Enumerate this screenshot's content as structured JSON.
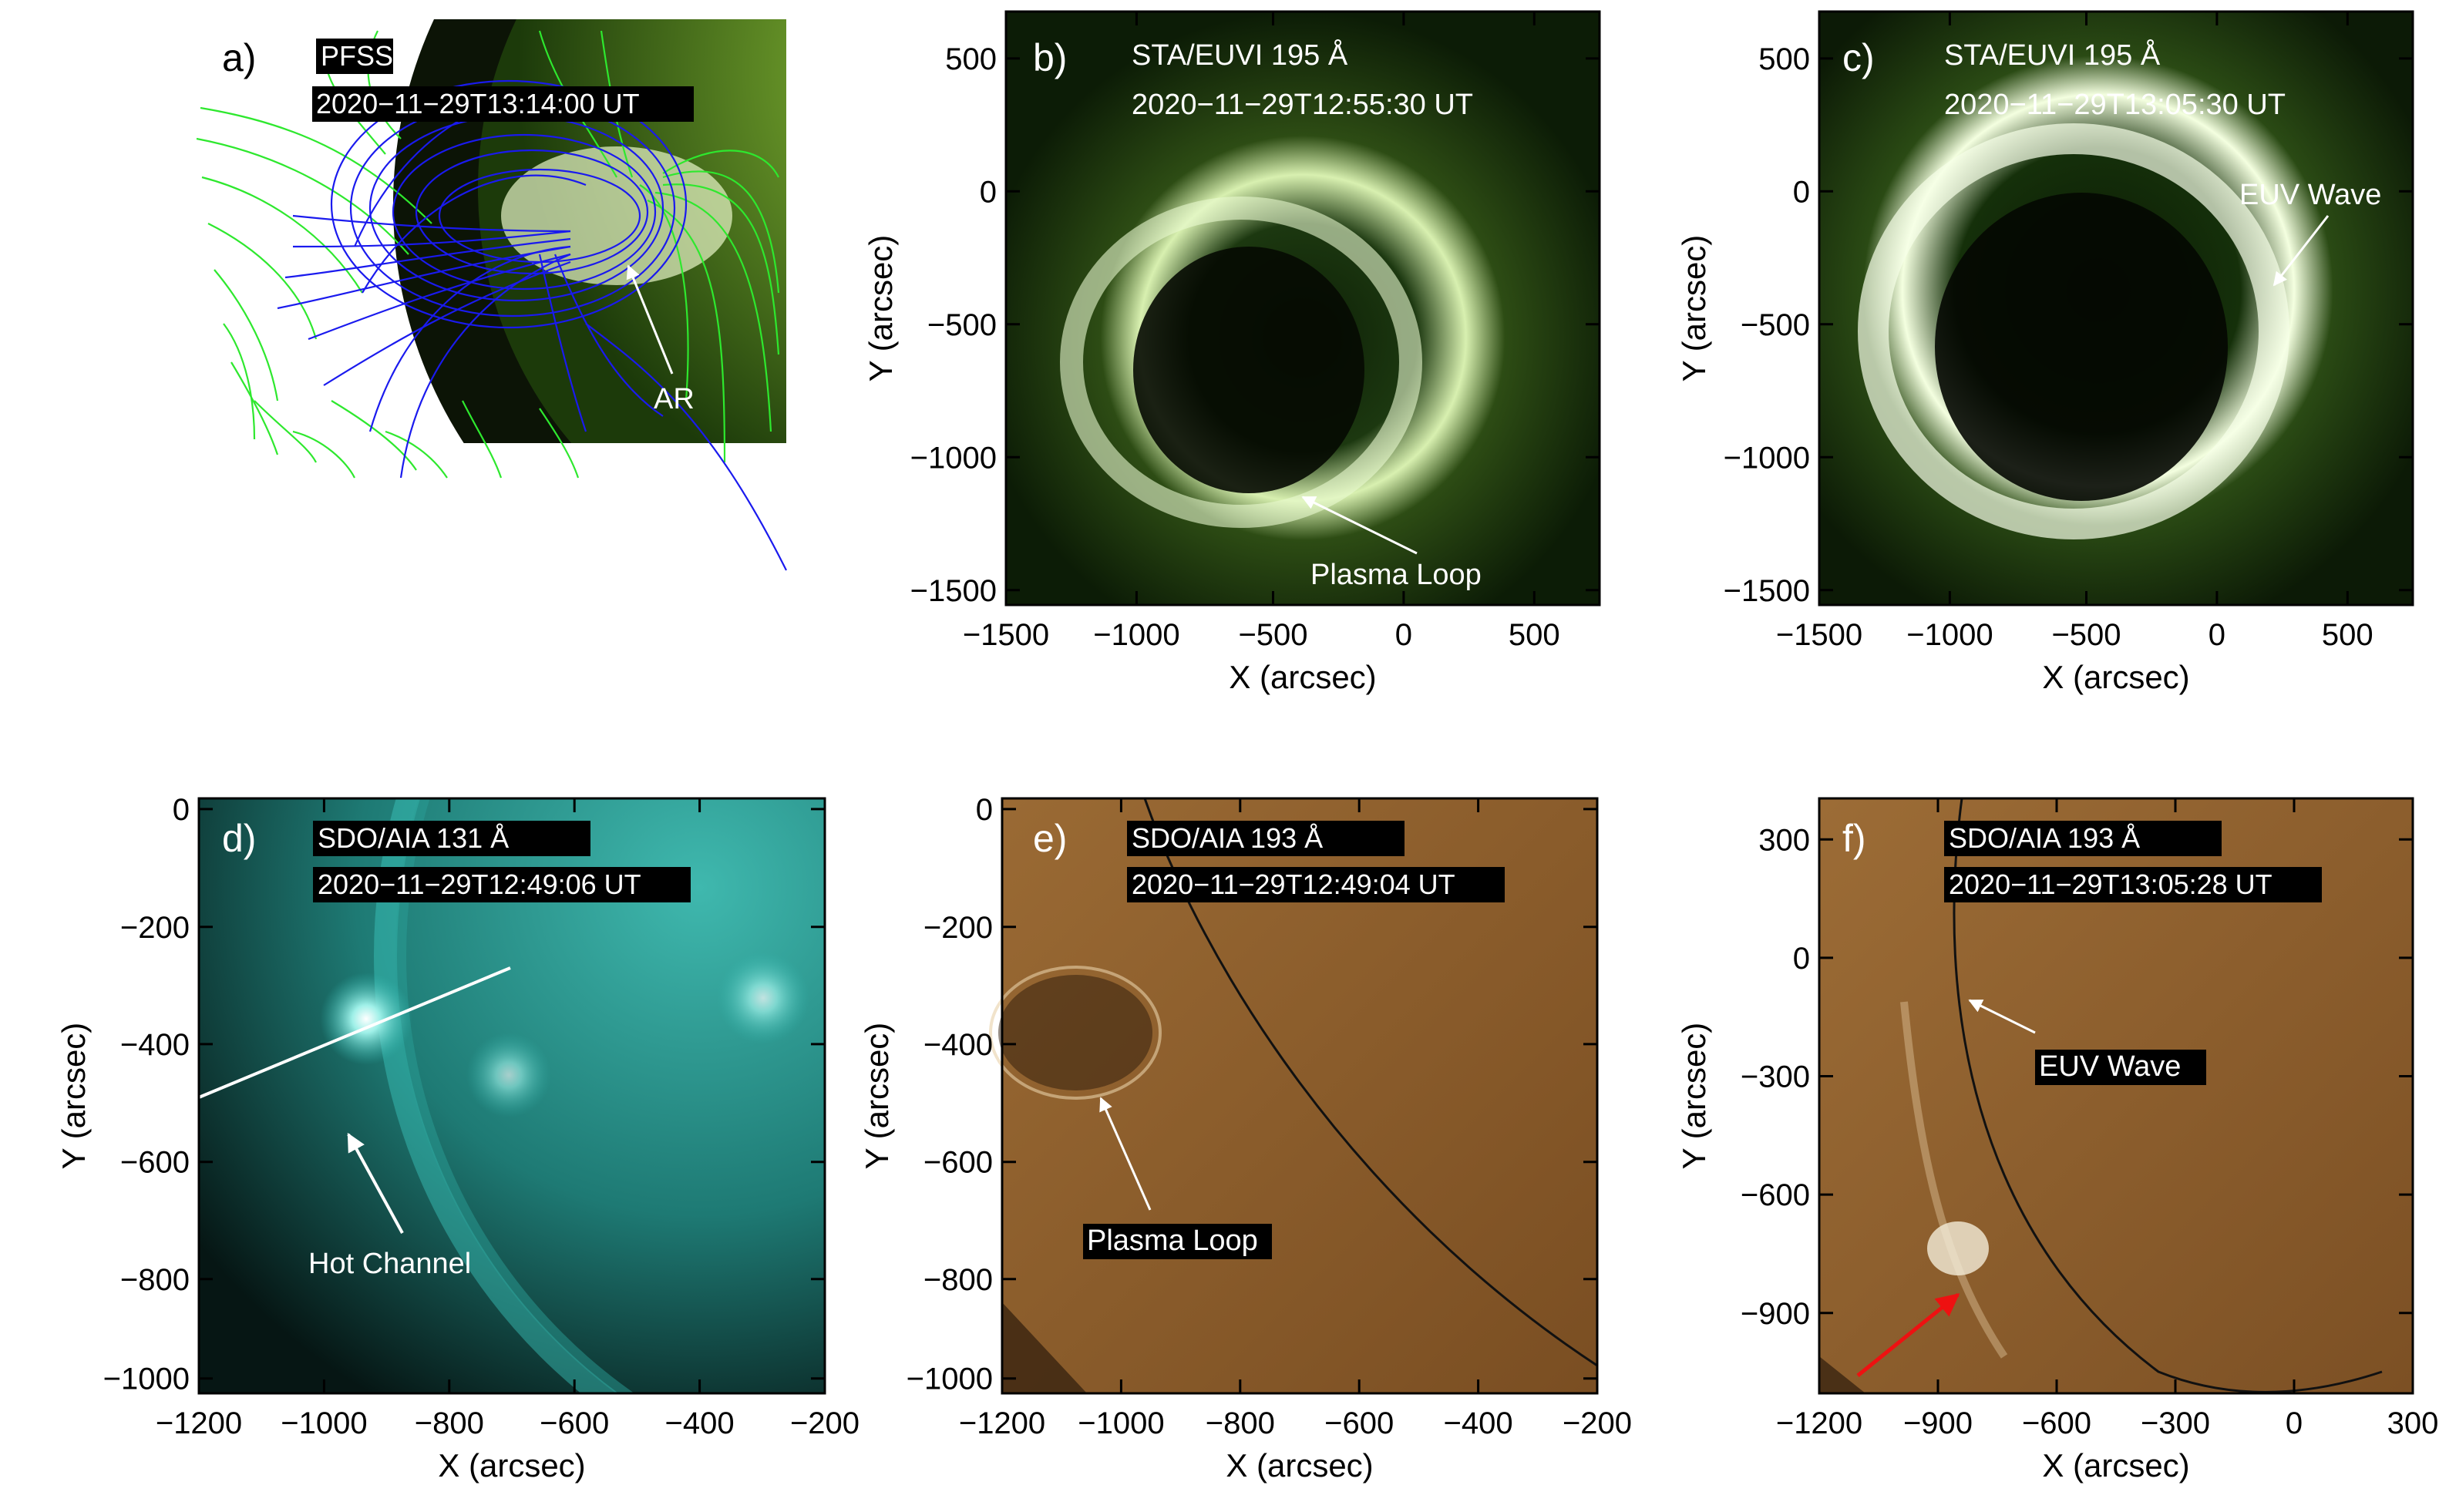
{
  "panels": {
    "a": {
      "letter": "a)",
      "tag1": "PFSS",
      "tag2": "2020−11−29T13:14:00 UT",
      "annotation": "AR"
    },
    "b": {
      "letter": "b)",
      "tag1": "STA/EUVI 195 Å",
      "tag2": "2020−11−29T12:55:30 UT",
      "annotation": "Plasma Loop",
      "xlabel": "X (arcsec)",
      "ylabel": "Y (arcsec)",
      "xticks": [
        "−1500",
        "−1000",
        "−500",
        "0",
        "500"
      ],
      "yticks": [
        "500",
        "0",
        "−500",
        "−1000",
        "−1500"
      ]
    },
    "c": {
      "letter": "c)",
      "tag1": "STA/EUVI 195 Å",
      "tag2": "2020−11−29T13:05:30 UT",
      "annotation": "EUV Wave",
      "xlabel": "X (arcsec)",
      "ylabel": "Y (arcsec)",
      "xticks": [
        "−1500",
        "−1000",
        "−500",
        "0",
        "500"
      ],
      "yticks": [
        "500",
        "0",
        "−500",
        "−1000",
        "−1500"
      ]
    },
    "d": {
      "letter": "d)",
      "tag1": "SDO/AIA 131 Å",
      "tag2": "2020−11−29T12:49:06 UT",
      "annotation": "Hot Channel",
      "xlabel": "X (arcsec)",
      "ylabel": "Y (arcsec)",
      "xticks": [
        "−1200",
        "−1000",
        "−800",
        "−600",
        "−400",
        "−200"
      ],
      "yticks": [
        "0",
        "−200",
        "−400",
        "−600",
        "−800",
        "−1000"
      ]
    },
    "e": {
      "letter": "e)",
      "tag1": "SDO/AIA 193 Å",
      "tag2": "2020−11−29T12:49:04 UT",
      "annotation": "Plasma Loop",
      "xlabel": "X (arcsec)",
      "ylabel": "Y (arcsec)",
      "xticks": [
        "−1200",
        "−1000",
        "−800",
        "−600",
        "−400",
        "−200"
      ],
      "yticks": [
        "0",
        "−200",
        "−400",
        "−600",
        "−800",
        "−1000"
      ]
    },
    "f": {
      "letter": "f)",
      "tag1": "SDO/AIA 193 Å",
      "tag2": "2020−11−29T13:05:28 UT",
      "annotation": "EUV Wave",
      "xlabel": "X (arcsec)",
      "ylabel": "Y (arcsec)",
      "xticks": [
        "−1200",
        "−900",
        "−600",
        "−300",
        "0",
        "300"
      ],
      "yticks": [
        "300",
        "0",
        "−300",
        "−600",
        "−900"
      ]
    }
  },
  "colors": {
    "pfss_open": "#2ee82e",
    "pfss_closed": "#1a1aee",
    "euvi": "#6a9a2a",
    "aia131": "#2fb8b0",
    "aia193": "#8a5a2a",
    "arrow_white": "#ffffff",
    "arrow_red": "#ee1111"
  }
}
